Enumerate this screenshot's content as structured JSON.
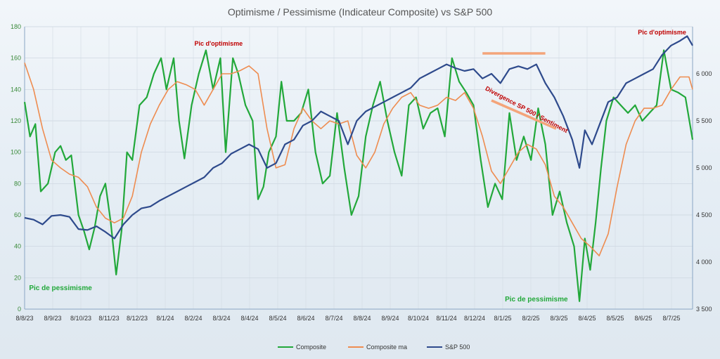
{
  "chart_data": {
    "type": "line",
    "title": "Optimisme / Pessimisme (Indicateur Composite) vs S&P 500",
    "x_tick_labels": [
      "8/8/23",
      "8/9/23",
      "8/10/23",
      "8/11/23",
      "8/12/23",
      "8/1/24",
      "8/2/24",
      "8/3/24",
      "8/4/24",
      "8/5/24",
      "8/6/24",
      "8/7/24",
      "8/8/24",
      "8/9/24",
      "8/10/24",
      "8/11/24",
      "8/12/24",
      "8/1/25",
      "8/2/25",
      "8/3/25",
      "8/4/25",
      "8/5/25",
      "8/6/25",
      "8/7/25"
    ],
    "y_left": {
      "range": [
        0,
        180
      ],
      "ticks": [
        0,
        20,
        40,
        60,
        80,
        100,
        120,
        140,
        160,
        180
      ]
    },
    "y_right": {
      "range": [
        3500,
        6500
      ],
      "ticks": [
        3500,
        4000,
        4500,
        5000,
        5500,
        6000
      ],
      "tick_labels": [
        "3 500",
        "4 000",
        "4 500",
        "5 000",
        "5 500",
        "6 000"
      ]
    },
    "grid": true,
    "legend_position": "bottom",
    "series": [
      {
        "name": "Composite",
        "axis": "left",
        "color": "#22a83a",
        "points": [
          [
            0,
            132
          ],
          [
            0.3,
            110
          ],
          [
            0.6,
            118
          ],
          [
            0.9,
            75
          ],
          [
            1.3,
            80
          ],
          [
            1.7,
            100
          ],
          [
            2.0,
            104
          ],
          [
            2.3,
            95
          ],
          [
            2.6,
            98
          ],
          [
            3.0,
            60
          ],
          [
            3.3,
            50
          ],
          [
            3.6,
            38
          ],
          [
            3.9,
            52
          ],
          [
            4.2,
            72
          ],
          [
            4.5,
            80
          ],
          [
            4.8,
            55
          ],
          [
            5.1,
            22
          ],
          [
            5.4,
            50
          ],
          [
            5.7,
            100
          ],
          [
            6.0,
            95
          ],
          [
            6.4,
            130
          ],
          [
            6.8,
            135
          ],
          [
            7.2,
            150
          ],
          [
            7.6,
            160
          ],
          [
            7.9,
            140
          ],
          [
            8.3,
            160
          ],
          [
            8.6,
            120
          ],
          [
            8.9,
            96
          ],
          [
            9.3,
            130
          ],
          [
            9.7,
            150
          ],
          [
            10.1,
            165
          ],
          [
            10.5,
            140
          ],
          [
            10.9,
            160
          ],
          [
            11.2,
            100
          ],
          [
            11.6,
            160
          ],
          [
            11.9,
            150
          ],
          [
            12.3,
            130
          ],
          [
            12.7,
            120
          ],
          [
            13.0,
            70
          ],
          [
            13.3,
            78
          ],
          [
            13.6,
            100
          ],
          [
            14.0,
            110
          ],
          [
            14.3,
            145
          ],
          [
            14.6,
            120
          ],
          [
            15.0,
            120
          ],
          [
            15.4,
            125
          ],
          [
            15.8,
            140
          ],
          [
            16.2,
            100
          ],
          [
            16.6,
            80
          ],
          [
            17.0,
            85
          ],
          [
            17.4,
            125
          ],
          [
            17.8,
            90
          ],
          [
            18.2,
            60
          ],
          [
            18.6,
            72
          ],
          [
            19.0,
            110
          ],
          [
            19.4,
            130
          ],
          [
            19.8,
            145
          ],
          [
            20.2,
            120
          ],
          [
            20.6,
            100
          ],
          [
            21.0,
            85
          ],
          [
            21.4,
            130
          ],
          [
            21.8,
            135
          ],
          [
            22.2,
            115
          ],
          [
            22.6,
            125
          ],
          [
            23.0,
            128
          ],
          [
            23.4,
            110
          ],
          [
            23.8,
            160
          ],
          [
            24.2,
            145
          ],
          [
            24.6,
            138
          ],
          [
            25.0,
            130
          ],
          [
            25.4,
            95
          ],
          [
            25.8,
            65
          ],
          [
            26.2,
            80
          ],
          [
            26.6,
            70
          ],
          [
            27.0,
            125
          ],
          [
            27.4,
            95
          ],
          [
            27.8,
            110
          ],
          [
            28.2,
            95
          ],
          [
            28.6,
            128
          ],
          [
            29.0,
            105
          ],
          [
            29.4,
            60
          ],
          [
            29.8,
            75
          ],
          [
            30.2,
            55
          ],
          [
            30.6,
            40
          ],
          [
            30.9,
            5
          ],
          [
            31.2,
            45
          ],
          [
            31.5,
            25
          ],
          [
            31.8,
            55
          ],
          [
            32.1,
            90
          ],
          [
            32.4,
            120
          ],
          [
            32.8,
            135
          ],
          [
            33.2,
            130
          ],
          [
            33.6,
            125
          ],
          [
            34.0,
            130
          ],
          [
            34.4,
            120
          ],
          [
            34.8,
            125
          ],
          [
            35.2,
            130
          ],
          [
            35.6,
            165
          ],
          [
            36.0,
            140
          ],
          [
            36.4,
            138
          ],
          [
            36.8,
            135
          ],
          [
            37.2,
            108
          ]
        ]
      },
      {
        "name": "Composite ma",
        "axis": "left",
        "color": "#ee8c50",
        "points": [
          [
            0,
            157
          ],
          [
            0.5,
            140
          ],
          [
            1.0,
            115
          ],
          [
            1.5,
            95
          ],
          [
            2.0,
            90
          ],
          [
            2.5,
            86
          ],
          [
            3.0,
            84
          ],
          [
            3.5,
            78
          ],
          [
            4.0,
            65
          ],
          [
            4.5,
            58
          ],
          [
            5.0,
            55
          ],
          [
            5.5,
            58
          ],
          [
            6.0,
            72
          ],
          [
            6.5,
            100
          ],
          [
            7.0,
            118
          ],
          [
            7.5,
            130
          ],
          [
            8.0,
            140
          ],
          [
            8.5,
            145
          ],
          [
            9.0,
            143
          ],
          [
            9.5,
            140
          ],
          [
            10.0,
            130
          ],
          [
            10.5,
            140
          ],
          [
            11.0,
            150
          ],
          [
            11.5,
            150
          ],
          [
            12.0,
            152
          ],
          [
            12.5,
            155
          ],
          [
            13.0,
            150
          ],
          [
            13.5,
            115
          ],
          [
            14.0,
            90
          ],
          [
            14.5,
            92
          ],
          [
            15.0,
            115
          ],
          [
            15.5,
            128
          ],
          [
            16.0,
            120
          ],
          [
            16.5,
            115
          ],
          [
            17.0,
            120
          ],
          [
            17.5,
            118
          ],
          [
            18.0,
            120
          ],
          [
            18.5,
            98
          ],
          [
            19.0,
            90
          ],
          [
            19.5,
            100
          ],
          [
            20.0,
            118
          ],
          [
            20.5,
            128
          ],
          [
            21.0,
            135
          ],
          [
            21.5,
            138
          ],
          [
            22.0,
            130
          ],
          [
            22.5,
            128
          ],
          [
            23.0,
            130
          ],
          [
            23.5,
            135
          ],
          [
            24.0,
            133
          ],
          [
            24.5,
            138
          ],
          [
            25.0,
            128
          ],
          [
            25.5,
            110
          ],
          [
            26.0,
            88
          ],
          [
            26.5,
            80
          ],
          [
            27.0,
            90
          ],
          [
            27.5,
            100
          ],
          [
            28.0,
            105
          ],
          [
            28.5,
            102
          ],
          [
            29.0,
            92
          ],
          [
            29.5,
            72
          ],
          [
            30.0,
            65
          ],
          [
            30.5,
            55
          ],
          [
            31.0,
            45
          ],
          [
            31.5,
            40
          ],
          [
            32.0,
            34
          ],
          [
            32.5,
            48
          ],
          [
            33.0,
            78
          ],
          [
            33.5,
            105
          ],
          [
            34.0,
            120
          ],
          [
            34.5,
            128
          ],
          [
            35.0,
            128
          ],
          [
            35.5,
            130
          ],
          [
            36.0,
            140
          ],
          [
            36.5,
            148
          ],
          [
            37.0,
            148
          ],
          [
            37.2,
            140
          ]
        ]
      },
      {
        "name": "S&P 500",
        "axis": "right",
        "color": "#2e4a8c",
        "points": [
          [
            0,
            4470
          ],
          [
            0.5,
            4450
          ],
          [
            1.0,
            4400
          ],
          [
            1.5,
            4490
          ],
          [
            2.0,
            4500
          ],
          [
            2.5,
            4480
          ],
          [
            3.0,
            4350
          ],
          [
            3.5,
            4340
          ],
          [
            4.0,
            4380
          ],
          [
            4.5,
            4320
          ],
          [
            5.0,
            4250
          ],
          [
            5.5,
            4400
          ],
          [
            6.0,
            4500
          ],
          [
            6.5,
            4570
          ],
          [
            7.0,
            4590
          ],
          [
            7.5,
            4650
          ],
          [
            8.0,
            4700
          ],
          [
            8.5,
            4750
          ],
          [
            9.0,
            4800
          ],
          [
            9.5,
            4850
          ],
          [
            10.0,
            4900
          ],
          [
            10.5,
            5000
          ],
          [
            11.0,
            5050
          ],
          [
            11.5,
            5150
          ],
          [
            12.0,
            5200
          ],
          [
            12.5,
            5250
          ],
          [
            13.0,
            5200
          ],
          [
            13.5,
            5000
          ],
          [
            14.0,
            5050
          ],
          [
            14.5,
            5250
          ],
          [
            15.0,
            5300
          ],
          [
            15.5,
            5450
          ],
          [
            16.0,
            5500
          ],
          [
            16.5,
            5600
          ],
          [
            17.0,
            5550
          ],
          [
            17.5,
            5500
          ],
          [
            18.0,
            5250
          ],
          [
            18.5,
            5500
          ],
          [
            19.0,
            5600
          ],
          [
            19.5,
            5650
          ],
          [
            20.0,
            5700
          ],
          [
            20.5,
            5750
          ],
          [
            21.0,
            5800
          ],
          [
            21.5,
            5850
          ],
          [
            22.0,
            5950
          ],
          [
            22.5,
            6000
          ],
          [
            23.0,
            6050
          ],
          [
            23.5,
            6100
          ],
          [
            24.0,
            6060
          ],
          [
            24.5,
            6030
          ],
          [
            25.0,
            6050
          ],
          [
            25.5,
            5950
          ],
          [
            26.0,
            6000
          ],
          [
            26.5,
            5900
          ],
          [
            27.0,
            6050
          ],
          [
            27.5,
            6080
          ],
          [
            28.0,
            6050
          ],
          [
            28.5,
            6100
          ],
          [
            29.0,
            5900
          ],
          [
            29.5,
            5750
          ],
          [
            30.0,
            5550
          ],
          [
            30.5,
            5300
          ],
          [
            30.9,
            5000
          ],
          [
            31.2,
            5400
          ],
          [
            31.6,
            5250
          ],
          [
            32.0,
            5450
          ],
          [
            32.5,
            5700
          ],
          [
            33.0,
            5750
          ],
          [
            33.5,
            5900
          ],
          [
            34.0,
            5950
          ],
          [
            34.5,
            6000
          ],
          [
            35.0,
            6050
          ],
          [
            35.5,
            6200
          ],
          [
            36.0,
            6300
          ],
          [
            36.5,
            6350
          ],
          [
            36.9,
            6400
          ],
          [
            37.2,
            6300
          ]
        ]
      }
    ],
    "annotations": [
      {
        "text": "Pic d'optimisme",
        "style": "red",
        "x": 10.8,
        "y_left": 168
      },
      {
        "text": "Pic d'optimisme",
        "style": "red",
        "x": 35.5,
        "y_left": 175
      },
      {
        "text": "Pic de pessimisme",
        "style": "green",
        "x": 2.0,
        "y_left": 12
      },
      {
        "text": "Pic de pessimisme",
        "style": "green",
        "x": 28.5,
        "y_left": 5
      },
      {
        "text": "Divergence SP 500 / Sentiment",
        "style": "red-rotated",
        "x": 27.9,
        "y_left": 126
      }
    ],
    "divergence_lines": [
      {
        "color": "#f4a47a",
        "from": [
          25.5,
          163
        ],
        "to": [
          29.0,
          163
        ]
      },
      {
        "color": "#f4a47a",
        "from": [
          26.0,
          133
        ],
        "to": [
          29.6,
          115
        ]
      }
    ]
  }
}
